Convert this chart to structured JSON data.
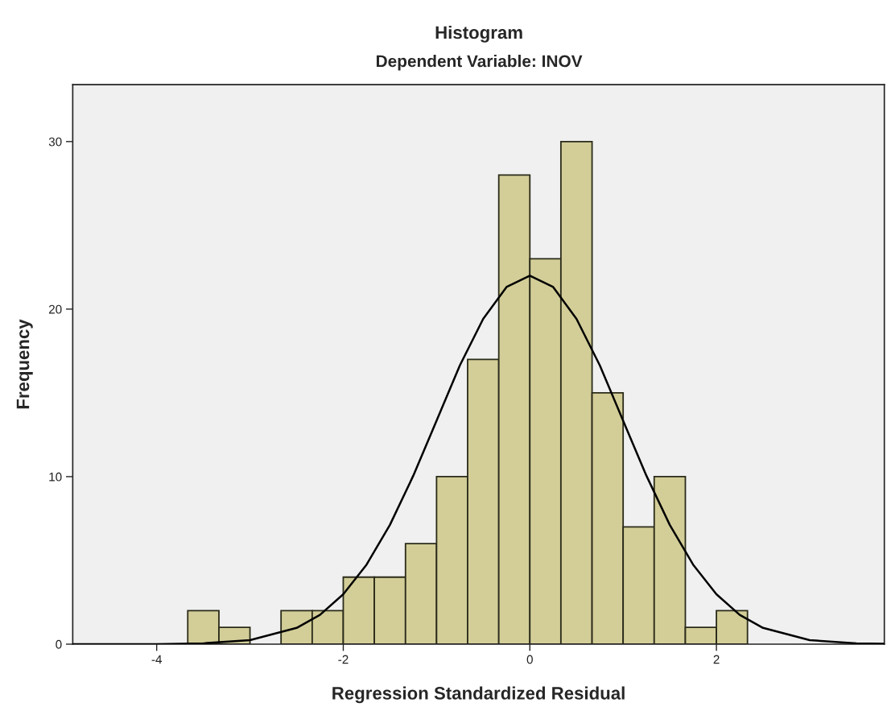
{
  "chart_data": {
    "type": "histogram",
    "title": "Histogram",
    "subtitle": "Dependent Variable: INOV",
    "xlabel": "Regression Standardized Residual",
    "ylabel": "Frequency",
    "bins": [
      -3.667,
      -3.333,
      -3,
      -2.667,
      -2.333,
      -2,
      -1.667,
      -1.333,
      -1,
      -0.667,
      -0.333,
      0,
      0.333,
      0.667,
      1,
      1.333,
      1.667,
      2,
      2.333
    ],
    "values": [
      2,
      1,
      0,
      2,
      2,
      4,
      4,
      6,
      10,
      17,
      28,
      23,
      30,
      15,
      7,
      10,
      1,
      2
    ],
    "color": "#d3ce98",
    "series": [
      {
        "type": "line",
        "color": "#000000",
        "x": [
          -4.9,
          -4.5,
          -4,
          -3.5,
          -3,
          -2.5,
          -2.25,
          -2,
          -1.75,
          -1.5,
          -1.25,
          -1,
          -0.75,
          -0.5,
          -0.25,
          0,
          0.25,
          0.5,
          0.75,
          1,
          1.25,
          1.5,
          1.75,
          2,
          2.25,
          2.5,
          3,
          3.5,
          3.8
        ],
        "values": [
          0,
          0,
          0,
          0.05,
          0.24,
          0.97,
          1.75,
          2.98,
          4.75,
          7.12,
          10.05,
          13.34,
          16.64,
          19.42,
          21.32,
          22,
          21.32,
          19.42,
          16.64,
          13.34,
          10.05,
          7.12,
          4.75,
          2.98,
          1.75,
          0.97,
          0.24,
          0.05,
          0.02
        ]
      }
    ],
    "xlim": [
      -4.9,
      3.8
    ],
    "ylim": [
      0,
      33.4
    ],
    "xticks": [
      -4,
      -2,
      0,
      2
    ],
    "yticks": [
      0,
      10,
      20,
      30
    ],
    "grid": false
  }
}
